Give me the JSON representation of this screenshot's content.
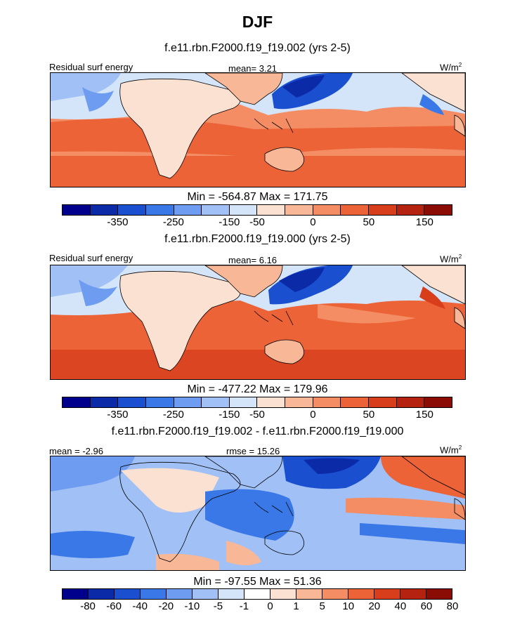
{
  "title": "DJF",
  "units": "W/m",
  "units_sup": "2",
  "panels": [
    {
      "case": "f.e11.rbn.F2000.f19_f19.002 (yrs 2-5)",
      "left_label": "Residual surf energy",
      "center_label": "mean=   3.21",
      "minmax": "Min = -564.87 Max = 171.75"
    },
    {
      "case": "f.e11.rbn.F2000.f19_f19.000 (yrs 2-5)",
      "left_label": "Residual surf energy",
      "center_label": "mean=   6.16",
      "minmax": "Min = -477.22 Max = 179.96"
    },
    {
      "case": "f.e11.rbn.F2000.f19_f19.002 - f.e11.rbn.F2000.f19_f19.000",
      "left_label": "mean =  -2.96",
      "center_label": "rmse =  15.26",
      "minmax": "Min = -97.55 Max =  51.36"
    }
  ],
  "colorbar_abs": {
    "colors": [
      "#00008c",
      "#0a2aa8",
      "#1a4fd0",
      "#3a78e8",
      "#6d9cf0",
      "#a1c0f5",
      "#d4e5fa",
      "#fbe1d2",
      "#f8b898",
      "#f48d64",
      "#ec6338",
      "#d83d1c",
      "#b52210",
      "#8a0c04"
    ],
    "tick_labels": [
      "-350",
      "-250",
      "-150",
      "-50",
      "0",
      "50",
      "150"
    ]
  },
  "colorbar_diff": {
    "colors": [
      "#00008c",
      "#0a2aa8",
      "#1a4fd0",
      "#3a78e8",
      "#6d9cf0",
      "#a1c0f5",
      "#d4e5fa",
      "#ffffff",
      "#fbe1d2",
      "#f8b898",
      "#f48d64",
      "#ec6338",
      "#d83d1c",
      "#b52210",
      "#8a0c04"
    ],
    "tick_labels": [
      "-80",
      "-60",
      "-40",
      "-20",
      "-10",
      "-5",
      "-1",
      "0",
      "1",
      "5",
      "10",
      "20",
      "40",
      "60",
      "80"
    ]
  }
}
